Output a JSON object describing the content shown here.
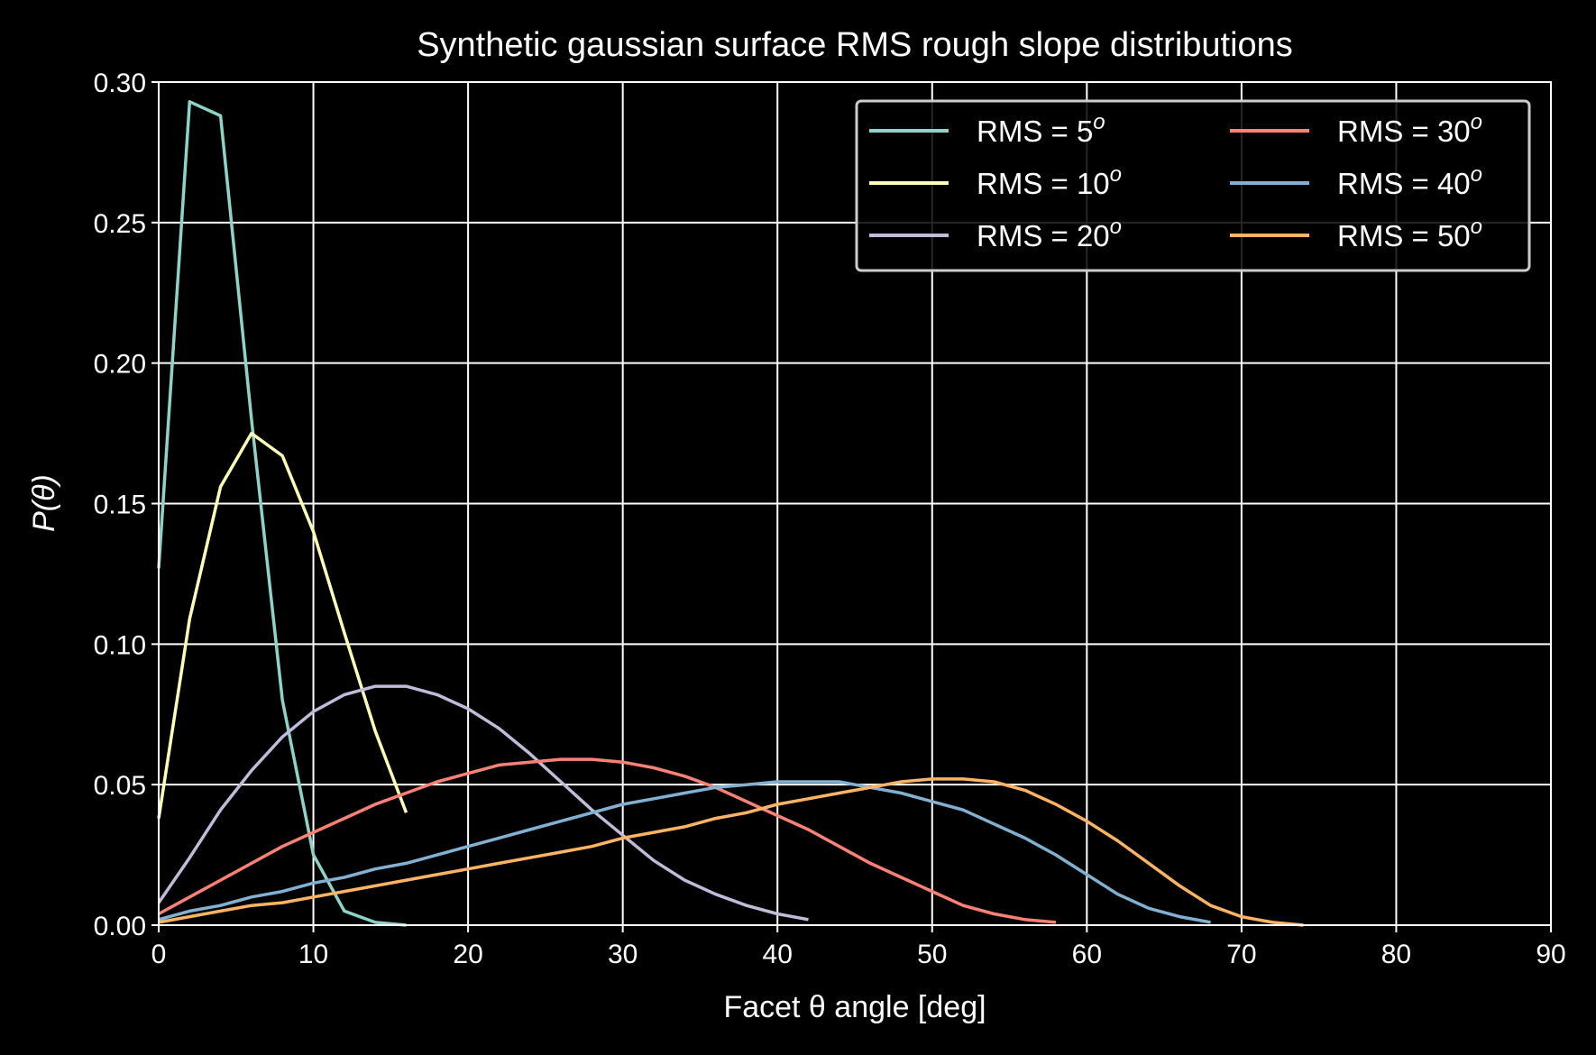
{
  "chart_data": {
    "type": "line",
    "title": "Synthetic gaussian surface RMS rough slope distributions",
    "xlabel": "Facet θ angle [deg]",
    "ylabel": "P(θ)",
    "xlim": [
      0,
      90
    ],
    "ylim": [
      0,
      0.3
    ],
    "xticks": [
      0,
      10,
      20,
      30,
      40,
      50,
      60,
      70,
      80,
      90
    ],
    "yticks": [
      0.0,
      0.05,
      0.1,
      0.15,
      0.2,
      0.25,
      0.3
    ],
    "ytick_labels": [
      "0.00",
      "0.05",
      "0.10",
      "0.15",
      "0.20",
      "0.25",
      "0.30"
    ],
    "xtick_labels": [
      "0",
      "10",
      "20",
      "30",
      "40",
      "50",
      "60",
      "70",
      "80",
      "90"
    ],
    "grid": true,
    "legend_placement": "top-right",
    "legend_columns": 2,
    "background": "#000000",
    "series": [
      {
        "name": "RMS = 5°",
        "label_text": "RMS = 5",
        "label_sup": "o",
        "color": "#8dd3c7",
        "x": [
          0,
          2,
          4,
          6,
          8,
          10,
          12,
          14,
          16
        ],
        "y": [
          0.127,
          0.293,
          0.288,
          0.18,
          0.08,
          0.025,
          0.005,
          0.001,
          0.0
        ]
      },
      {
        "name": "RMS = 10°",
        "label_text": "RMS = 10",
        "label_sup": "o",
        "color": "#feffb3",
        "x": [
          0,
          2,
          4,
          6,
          8,
          10,
          12,
          14,
          16
        ],
        "y": [
          0.038,
          0.109,
          0.156,
          0.175,
          0.167,
          0.14,
          0.104,
          0.069,
          0.04
        ]
      },
      {
        "name": "RMS = 20°",
        "label_text": "RMS = 20",
        "label_sup": "o",
        "color": "#bfbbd9",
        "x": [
          0,
          2,
          4,
          6,
          8,
          10,
          12,
          14,
          16,
          18,
          20,
          22,
          24,
          26,
          28,
          30,
          32,
          34,
          36,
          38,
          40,
          42
        ],
        "y": [
          0.008,
          0.024,
          0.041,
          0.055,
          0.067,
          0.076,
          0.082,
          0.085,
          0.085,
          0.082,
          0.077,
          0.07,
          0.061,
          0.051,
          0.041,
          0.032,
          0.023,
          0.016,
          0.011,
          0.007,
          0.004,
          0.002
        ]
      },
      {
        "name": "RMS = 30°",
        "label_text": "RMS = 30",
        "label_sup": "o",
        "color": "#fa8174",
        "x": [
          0,
          2,
          4,
          6,
          8,
          10,
          12,
          14,
          16,
          18,
          20,
          22,
          24,
          26,
          28,
          30,
          32,
          34,
          36,
          38,
          40,
          42,
          44,
          46,
          48,
          50,
          52,
          54,
          56,
          58
        ],
        "y": [
          0.004,
          0.01,
          0.016,
          0.022,
          0.028,
          0.033,
          0.038,
          0.043,
          0.047,
          0.051,
          0.054,
          0.057,
          0.058,
          0.059,
          0.059,
          0.058,
          0.056,
          0.053,
          0.049,
          0.044,
          0.039,
          0.034,
          0.028,
          0.022,
          0.017,
          0.012,
          0.007,
          0.004,
          0.002,
          0.001
        ]
      },
      {
        "name": "RMS = 40°",
        "label_text": "RMS = 40",
        "label_sup": "o",
        "color": "#81b1d2",
        "x": [
          0,
          2,
          4,
          6,
          8,
          10,
          12,
          14,
          16,
          18,
          20,
          22,
          24,
          26,
          28,
          30,
          32,
          34,
          36,
          38,
          40,
          42,
          44,
          46,
          48,
          50,
          52,
          54,
          56,
          58,
          60,
          62,
          64,
          66,
          68
        ],
        "y": [
          0.002,
          0.005,
          0.007,
          0.01,
          0.012,
          0.015,
          0.017,
          0.02,
          0.022,
          0.025,
          0.028,
          0.031,
          0.034,
          0.037,
          0.04,
          0.043,
          0.045,
          0.047,
          0.049,
          0.05,
          0.051,
          0.051,
          0.051,
          0.049,
          0.047,
          0.044,
          0.041,
          0.036,
          0.031,
          0.025,
          0.018,
          0.011,
          0.006,
          0.003,
          0.001
        ]
      },
      {
        "name": "RMS = 50°",
        "label_text": "RMS = 50",
        "label_sup": "o",
        "color": "#fdb462",
        "x": [
          0,
          2,
          4,
          6,
          8,
          10,
          12,
          14,
          16,
          18,
          20,
          22,
          24,
          26,
          28,
          30,
          32,
          34,
          36,
          38,
          40,
          42,
          44,
          46,
          48,
          50,
          52,
          54,
          56,
          58,
          60,
          62,
          64,
          66,
          68,
          70,
          72,
          74
        ],
        "y": [
          0.001,
          0.003,
          0.005,
          0.007,
          0.008,
          0.01,
          0.012,
          0.014,
          0.016,
          0.018,
          0.02,
          0.022,
          0.024,
          0.026,
          0.028,
          0.031,
          0.033,
          0.035,
          0.038,
          0.04,
          0.043,
          0.045,
          0.047,
          0.049,
          0.051,
          0.052,
          0.052,
          0.051,
          0.048,
          0.043,
          0.037,
          0.03,
          0.022,
          0.014,
          0.007,
          0.003,
          0.001,
          0.0
        ]
      }
    ]
  }
}
